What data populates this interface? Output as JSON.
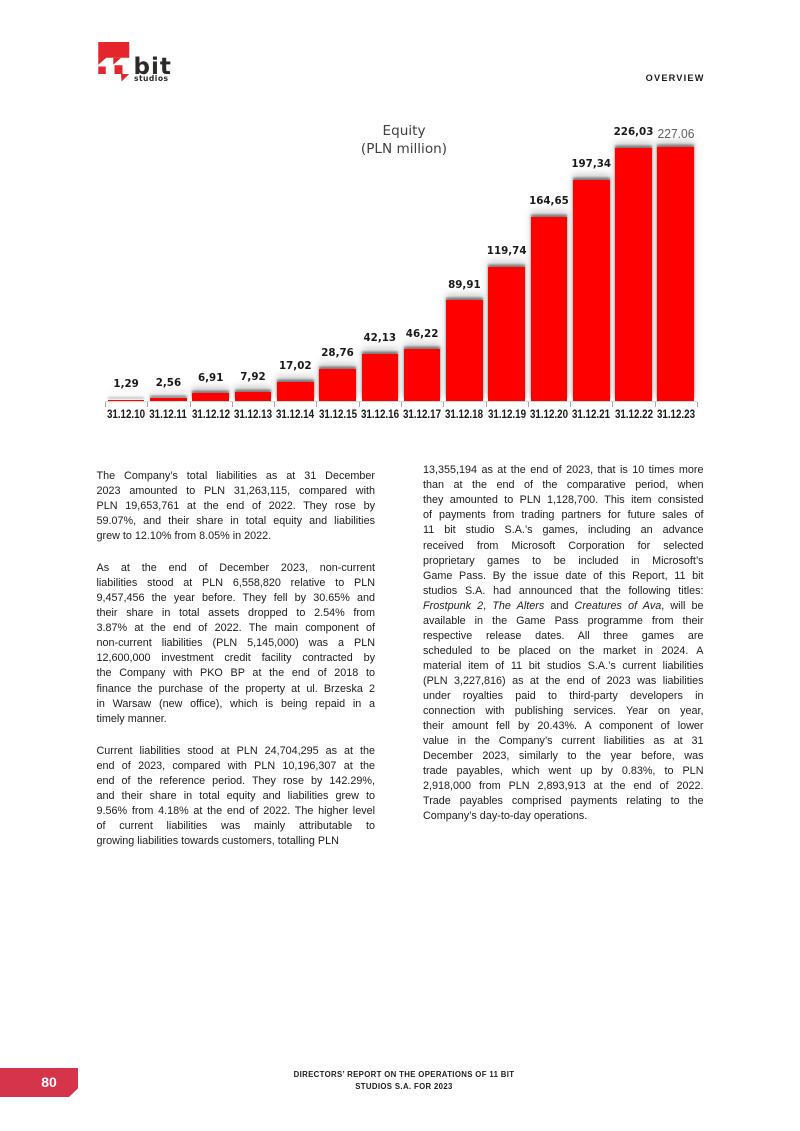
{
  "page": {
    "background": "#ffffff"
  },
  "header": {
    "logo": {
      "name": "11 bit studios logo",
      "brand_word": "bit",
      "brand_sub": "studios",
      "mark_color": "#e4262c",
      "text_color": "#2b2a29"
    },
    "section_label": "OVERVIEW"
  },
  "chart_data": {
    "type": "bar",
    "title": "Equity (PLN million)",
    "title_lines": [
      "Equity",
      "(PLN million)"
    ],
    "categories": [
      "31.12.10",
      "31.12.11",
      "31.12.12",
      "31.12.13",
      "31.12.14",
      "31.12.15",
      "31.12.16",
      "31.12.17",
      "31.12.18",
      "31.12.19",
      "31.12.20",
      "31.12.21",
      "31.12.22",
      "31.12.23"
    ],
    "values": [
      1.29,
      2.56,
      6.91,
      7.92,
      17.02,
      28.76,
      42.13,
      46.22,
      89.91,
      119.74,
      164.65,
      197.34,
      226.03,
      227.06
    ],
    "value_labels": [
      "1,29",
      "2,56",
      "6,91",
      "7,92",
      "17,02",
      "28,76",
      "42,13",
      "46,22",
      "89,91",
      "119,74",
      "164,65",
      "197,34",
      "226,03",
      "227.06"
    ],
    "gray_label_index": 13,
    "gray_label_color": "#5f5f5f",
    "bar_color": "#fe0000",
    "label_color": "#1a1a1a",
    "ylim": [
      0,
      227.06
    ],
    "grid": false,
    "legend": false
  },
  "columns": {
    "left": {
      "paragraphs": [
        {
          "lines": [
            "The Company’s total liabilities as at 31 December",
            "2023 amounted to PLN 31,263,115, compared with",
            "PLN 19,653,761 at the end of 2022. They rose by",
            "59.07%, and their share in total equity and liabilities",
            "grew to 12.10% from 8.05% in 2022."
          ]
        },
        {
          "lines": [
            "As at the end of December 2023, non-current",
            "liabilities stood at PLN 6,558,820 relative to PLN",
            "9,457,456 the year before. They fell by 30.65% and",
            "their share in total assets dropped to 2.54% from",
            "3.87% at the end of 2022. The main component of",
            "non-current liabilities (PLN 5,145,000) was a PLN",
            "12,600,000 investment credit facility contracted by",
            "the Company with PKO BP at the end of 2018 to",
            "finance the purchase of the property at ul. Brzeska 2",
            "in Warsaw (new office), which is being repaid in a",
            "timely manner."
          ]
        },
        {
          "lines": [
            "Current liabilities stood at PLN 24,704,295 as at the",
            "end of 2023, compared with PLN 10,196,307 at the",
            "end of the reference period. They rose by 142.29%,",
            "and their share in total equity and liabilities grew to",
            "9.56% from 4.18% at the end of 2022. The higher level",
            "of current liabilities was mainly attributable to",
            "growing liabilities towards customers, totalling PLN"
          ]
        }
      ]
    },
    "right": {
      "paragraphs": [
        {
          "lines": [
            "13,355,194 as at the end of 2023, that is 10 times more",
            "than at the end of the comparative period, when",
            "they amounted to PLN 1,128,700. This item consisted",
            "of payments from trading partners for future sales of",
            "11 bit studio S.A.’s games, including an advance",
            "received from Microsoft Corporation for selected",
            "proprietary games to be included in Microsoft’s",
            "Game Pass. By the issue date of this Report, 11 bit",
            "studios S.A. had announced that the following titles:",
            "*Frostpunk 2*, *The Alters* and *Creatures of Ava*, will be",
            "available in the Game Pass programme from their",
            "respective release dates. All three games are",
            "scheduled to be placed on the market in 2024. A",
            "material item of 11 bit studios S.A.’s current liabilities",
            "(PLN 3,227,816) as at the end of 2023 was liabilities",
            "under royalties paid to third-party developers in",
            "connection with publishing services. Year on year,",
            "their amount fell by 20.43%. A component of lower",
            "value in the Company’s current liabilities as at 31",
            "December 2023, similarly to the year before, was",
            "trade payables, which went up by 0.83%, to PLN",
            "2,918,000 from PLN 2,893,913 at the end of 2022.",
            "Trade payables comprised payments relating to the",
            "Company’s day-to-day operations."
          ]
        }
      ]
    }
  },
  "footer": {
    "page_number": "80",
    "badge_color": "#d5344b",
    "lines": [
      "DIRECTORS’ REPORT ON THE OPERATIONS OF 11 BIT",
      "STUDIOS S.A. FOR 2023"
    ]
  }
}
